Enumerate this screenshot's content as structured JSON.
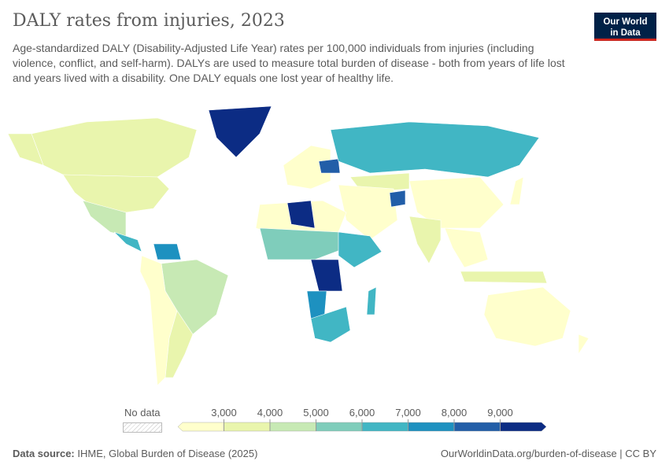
{
  "title": "DALY rates from injuries, 2023",
  "subtitle": "Age-standardized DALY (Disability-Adjusted Life Year) rates per 100,000 individuals from injuries (including violence, conflict, and self-harm). DALYs are used to measure total burden of disease - both from years of life lost and years lived with a disability. One DALY equals one lost year of healthy life.",
  "logo": "Our World in Data",
  "legend": {
    "no_data": "No data",
    "ticks": [
      "3,000",
      "4,000",
      "5,000",
      "6,000",
      "7,000",
      "8,000",
      "9,000"
    ],
    "colors": [
      "#ffffcc",
      "#e9f5ad",
      "#c7e9b4",
      "#7fcdbb",
      "#41b6c4",
      "#1d91c0",
      "#225ea8",
      "#0c2c84"
    ]
  },
  "footer": {
    "source_label": "Data source:",
    "source": "IHME, Global Burden of Disease (2025)",
    "link": "OurWorldinData.org/burden-of-disease | CC BY"
  }
}
